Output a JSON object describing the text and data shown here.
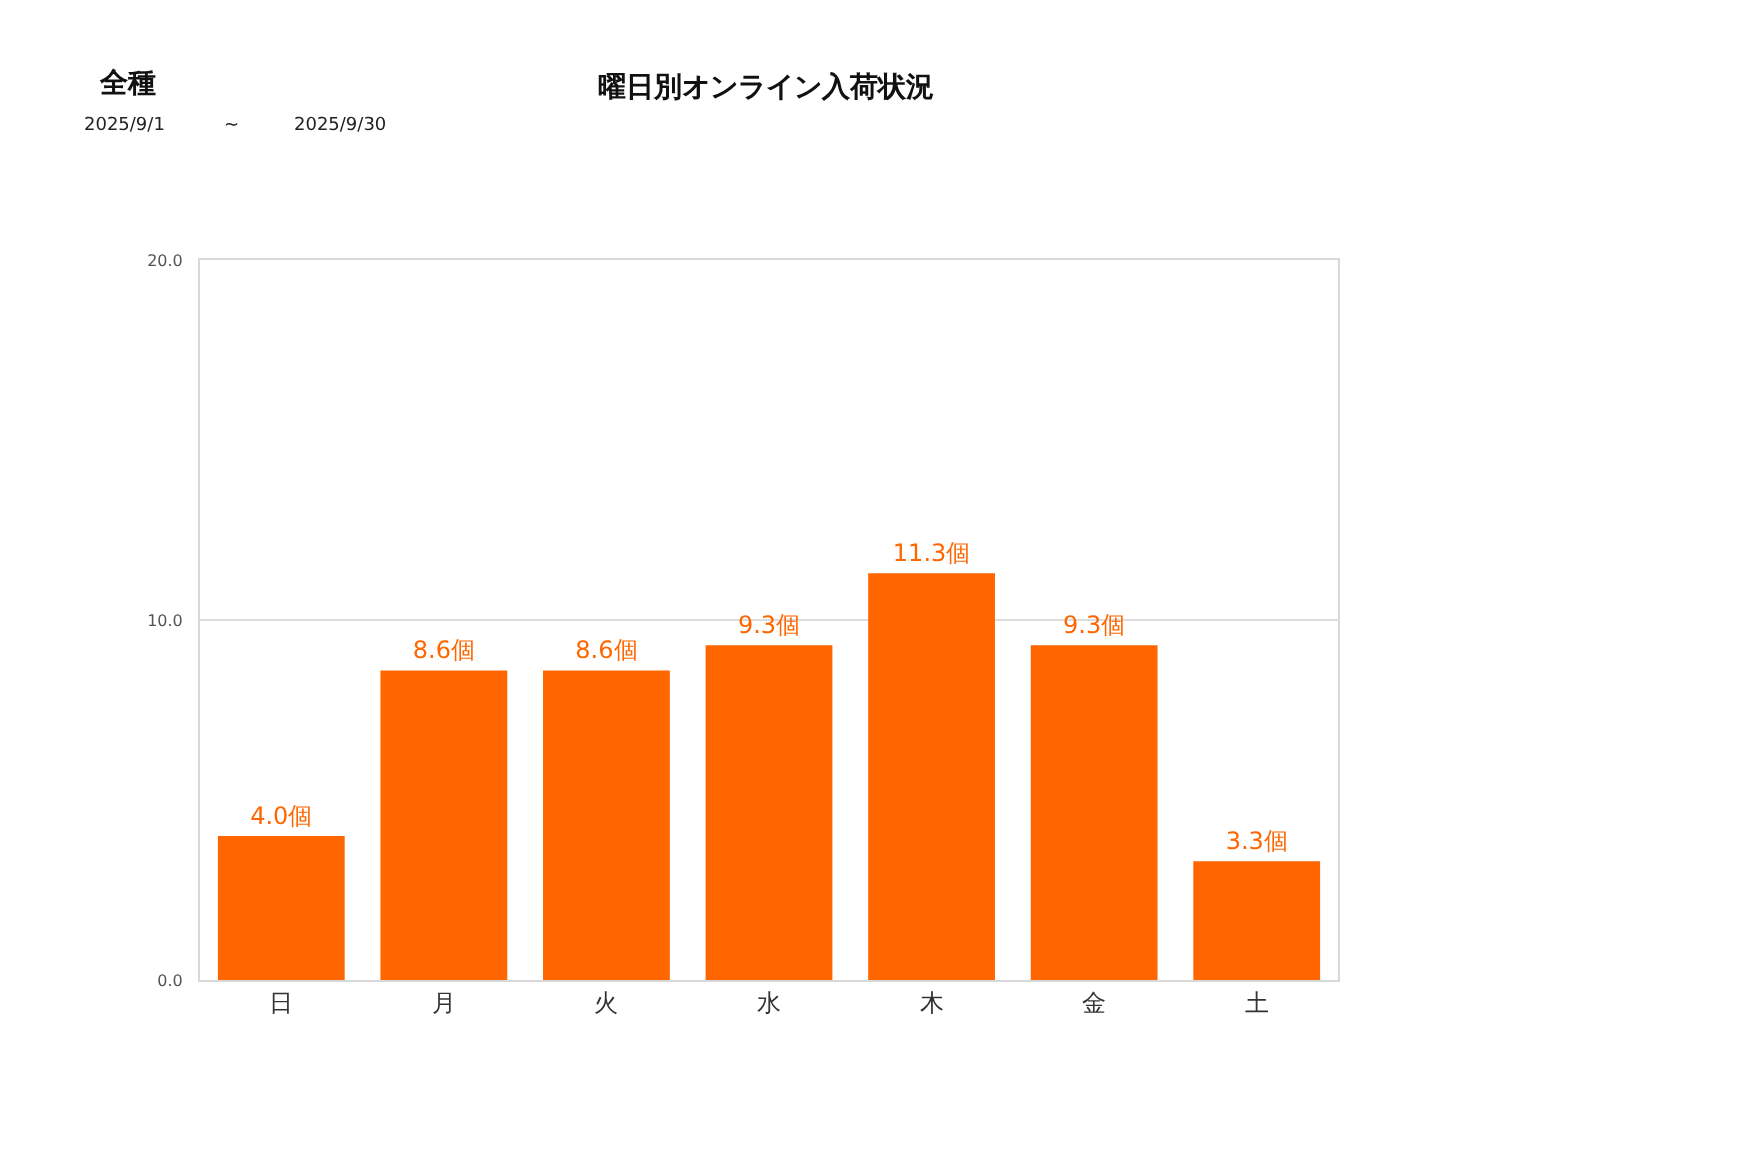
{
  "chart_data": {
    "type": "bar",
    "title": "曜日別オンライン入荷状況",
    "subtitle": "全種",
    "annotations": [
      "2025/9/1",
      "~",
      "2025/9/30"
    ],
    "categories": [
      "日",
      "月",
      "火",
      "水",
      "木",
      "金",
      "土"
    ],
    "series": [
      {
        "color": "#ff6600",
        "values": [
          4.0,
          8.6,
          8.6,
          9.3,
          11.3,
          9.3,
          3.3
        ],
        "value_labels": [
          "4.0個",
          "8.6個",
          "8.6個",
          "9.3個",
          "11.3個",
          "9.3個",
          "3.3個"
        ]
      }
    ],
    "ylim": [
      0,
      20
    ],
    "yticks": [
      {
        "value": 0,
        "label": "0.0"
      },
      {
        "value": 10,
        "label": "10.0"
      },
      {
        "value": 20,
        "label": "20.0"
      }
    ],
    "grid": "y"
  }
}
